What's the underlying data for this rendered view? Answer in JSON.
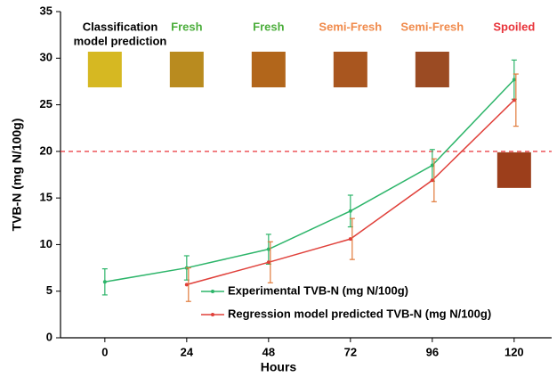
{
  "chart_data": {
    "type": "line",
    "xlabel": "Hours",
    "ylabel": "TVB-N (mg N/100g)",
    "x": [
      0,
      24,
      48,
      72,
      96,
      120
    ],
    "xlim": [
      -13,
      131
    ],
    "xticks": [
      0,
      24,
      48,
      72,
      96,
      120
    ],
    "ylim": [
      0,
      35
    ],
    "yticks": [
      0,
      5,
      10,
      15,
      20,
      25,
      30,
      35
    ],
    "series": [
      {
        "name": "Experimental TVB-N (mg N/100g)",
        "color": "#2db56a",
        "values": [
          6.0,
          7.5,
          9.5,
          13.6,
          18.5,
          27.7
        ],
        "errors": [
          1.4,
          1.3,
          1.6,
          1.7,
          1.7,
          2.1
        ]
      },
      {
        "name": "Regression model predicted TVB-N (mg N/100g)",
        "color": "#e0403a",
        "values": [
          null,
          5.7,
          8.1,
          10.6,
          16.9,
          25.5
        ],
        "errors": [
          null,
          1.8,
          2.2,
          2.2,
          2.3,
          2.8
        ]
      }
    ],
    "threshold": {
      "value": 20,
      "color": "#e8333a"
    },
    "heading": [
      "Classification",
      "model prediction"
    ],
    "predictions": [
      null,
      "Fresh",
      "Fresh",
      "Semi-Fresh",
      "Semi-Fresh",
      "Spoiled"
    ],
    "prediction_colors": [
      null,
      "#4cae3c",
      "#4cae3c",
      "#f08a4b",
      "#f08a4b",
      "#e8333a"
    ],
    "swatches": [
      "#d6b822",
      "#b98b1f",
      "#b2661b",
      "#a9561f",
      "#9b4b23",
      "#9c3e1b"
    ]
  }
}
